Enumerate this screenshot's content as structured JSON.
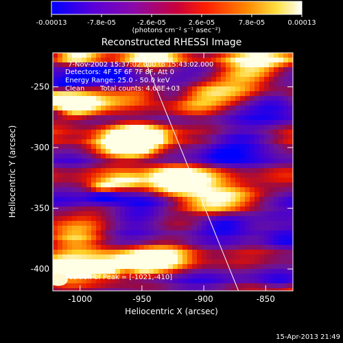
{
  "colorbar": {
    "tick_labels": [
      "-0.00013",
      "-7.8e-05",
      "-2.6e-05",
      "2.6e-05",
      "7.8e-05",
      "0.00013"
    ],
    "unit_label": "(photons cm⁻² s⁻¹ asec⁻²)",
    "range": [
      -0.00013,
      0.00013
    ],
    "colormap": [
      "#0000ff",
      "#7a00c8",
      "#9a1a80",
      "#ff0000",
      "#ff8800",
      "#ffee44",
      "#ffffff"
    ]
  },
  "title": "Reconstructed RHESSI Image",
  "info": {
    "time_range": "7-Nov-2002 15:37:02.000 to 15:43:02.000",
    "detectors": "Detectors: 4F 5F 6F 7F 8F, Att 0",
    "energy": "Energy Range: 25.0 - 50.0 keV",
    "algorithm": "Clean",
    "counts": "Total counts: 4.68E+03"
  },
  "peak_label": "Position of Peak = [-1021,-410]",
  "timestamp": "15-Apr-2013 21:49",
  "chart_data": {
    "type": "heatmap",
    "title": "Reconstructed RHESSI Image",
    "xlabel": "Heliocentric X (arcsec)",
    "ylabel": "Heliocentric Y (arcsec)",
    "xlim": [
      -1022,
      -828
    ],
    "ylim": [
      -418,
      -222
    ],
    "x_ticks": [
      -1000,
      -950,
      -900,
      -850
    ],
    "x_tick_labels": [
      "-1000",
      "-950",
      "-900",
      "-850"
    ],
    "y_ticks": [
      -250,
      -300,
      -350,
      -400
    ],
    "y_tick_labels": [
      "-250",
      "-300",
      "-350",
      "-400"
    ],
    "limb_line": [
      [
        -950,
        -222
      ],
      [
        -872,
        -418
      ]
    ],
    "peak": [
      -1021,
      -410
    ],
    "grid": false
  }
}
